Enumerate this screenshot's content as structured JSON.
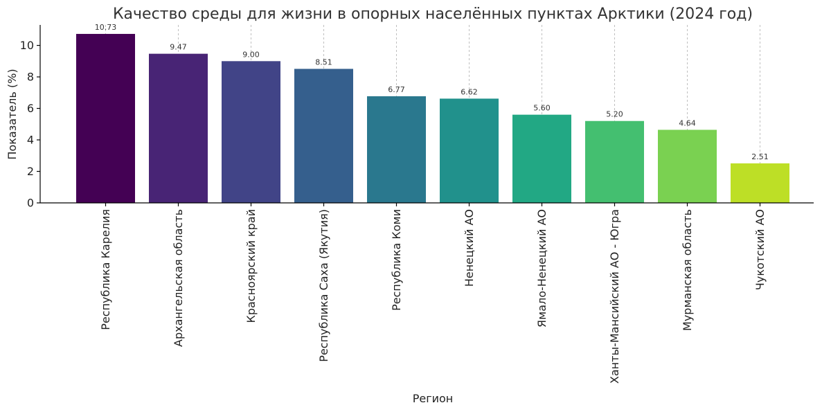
{
  "chart_data": {
    "type": "bar",
    "title": "Качество среды для жизни в опорных населённых пунктах Арктики (2024 год)",
    "xlabel": "Регион",
    "ylabel": "Показатель (%)",
    "ylim": [
      0,
      11.3
    ],
    "yticks": [
      0,
      2,
      4,
      6,
      8,
      10
    ],
    "grid": "vertical-dashed",
    "categories": [
      "Республика Карелия",
      "Архангельская область",
      "Красноярский край",
      "Республика Саха (Якутия)",
      "Республика Коми",
      "Ненецкий АО",
      "Ямало-Ненецкий АО",
      "Ханты-Мансийский АО - Югра",
      "Мурманская область",
      "Чукотский АО"
    ],
    "values": [
      10.73,
      9.47,
      9.0,
      8.51,
      6.77,
      6.62,
      5.6,
      5.2,
      4.64,
      2.51
    ],
    "value_labels": [
      "10.73",
      "9.47",
      "9.00",
      "8.51",
      "6.77",
      "6.62",
      "5.60",
      "5.20",
      "4.64",
      "2.51"
    ],
    "colors": [
      "#440154",
      "#482475",
      "#414487",
      "#355f8d",
      "#2a788e",
      "#21918c",
      "#22a884",
      "#44bf70",
      "#7ad151",
      "#bddf26"
    ]
  }
}
